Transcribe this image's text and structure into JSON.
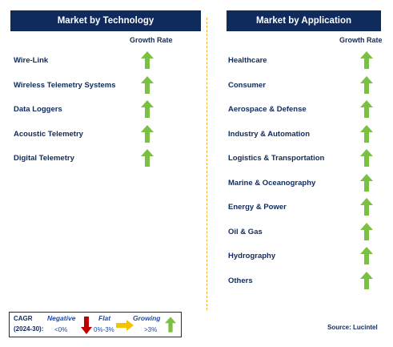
{
  "technology": {
    "header": "Market by Technology",
    "growth_label": "Growth Rate",
    "items": [
      {
        "label": "Wire-Link",
        "trend": "growing"
      },
      {
        "label": "Wireless Telemetry Systems",
        "trend": "growing"
      },
      {
        "label": "Data Loggers",
        "trend": "growing"
      },
      {
        "label": "Acoustic Telemetry",
        "trend": "growing"
      },
      {
        "label": "Digital Telemetry",
        "trend": "growing"
      }
    ]
  },
  "application": {
    "header": "Market by Application",
    "growth_label": "Growth Rate",
    "items": [
      {
        "label": "Healthcare",
        "trend": "growing"
      },
      {
        "label": "Consumer",
        "trend": "growing"
      },
      {
        "label": "Aerospace & Defense",
        "trend": "growing"
      },
      {
        "label": "Industry & Automation",
        "trend": "growing"
      },
      {
        "label": "Logistics & Transportation",
        "trend": "growing"
      },
      {
        "label": "Marine & Oceanography",
        "trend": "growing"
      },
      {
        "label": "Energy & Power",
        "trend": "growing"
      },
      {
        "label": "Oil & Gas",
        "trend": "growing"
      },
      {
        "label": "Hydrography",
        "trend": "growing"
      },
      {
        "label": "Others",
        "trend": "growing"
      }
    ]
  },
  "legend": {
    "cagr_line1": "CAGR",
    "cagr_line2": "(2024-30):",
    "negative_label": "Negative",
    "negative_value": "<0%",
    "flat_label": "Flat",
    "flat_value": "0%-3%",
    "growing_label": "Growing",
    "growing_value": ">3%"
  },
  "source": "Source: Lucintel",
  "colors": {
    "header_bg": "#0f2a5c",
    "growing": "#7ac143",
    "negative": "#c00000",
    "flat": "#f5c400",
    "divider": "#f2b233"
  }
}
